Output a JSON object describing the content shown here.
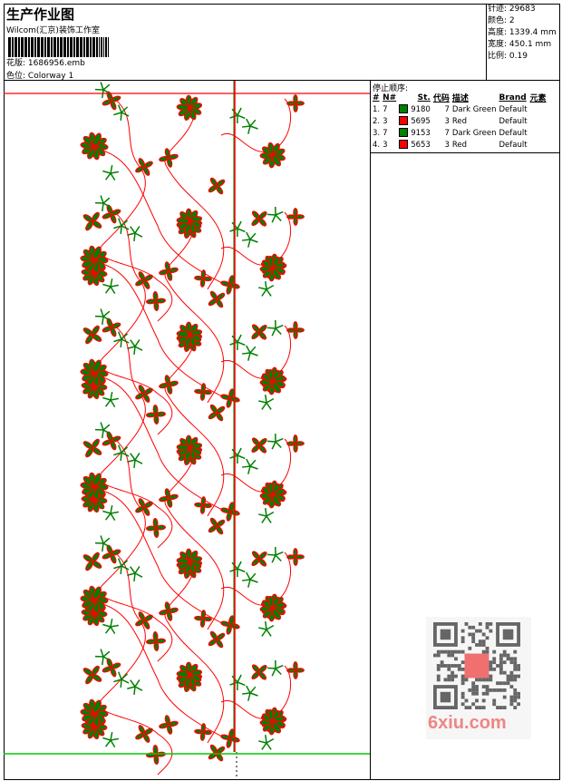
{
  "header": {
    "title": "生产作业图",
    "company": "Wilcom(汇京)装饰工作室",
    "design_label": "花版:",
    "design_file": "1686956.emb",
    "colorway_label": "色位:",
    "colorway": "Colorway 1"
  },
  "info": [
    {
      "label": "针迹:",
      "value": "29683"
    },
    {
      "label": "颜色:",
      "value": "2"
    },
    {
      "label": "高度:",
      "value": "1339.4 mm"
    },
    {
      "label": "宽度:",
      "value": "450.1 mm"
    },
    {
      "label": "比例:",
      "value": "0.19"
    }
  ],
  "stop_sequence": {
    "title": "停止顺序:",
    "columns": [
      "#",
      "N#",
      "St.",
      "代码",
      "描述",
      "Brand",
      "元素"
    ],
    "rows": [
      {
        "idx": "1.",
        "needle": "7",
        "color": "#008000",
        "stitches": "9180",
        "code": "7",
        "desc": "Dark Green",
        "brand": "Default"
      },
      {
        "idx": "2.",
        "needle": "3",
        "color": "#ff0000",
        "stitches": "5695",
        "code": "3",
        "desc": "Red",
        "brand": "Default"
      },
      {
        "idx": "3.",
        "needle": "7",
        "color": "#008000",
        "stitches": "9153",
        "code": "7",
        "desc": "Dark Green",
        "brand": "Default"
      },
      {
        "idx": "4.",
        "needle": "3",
        "color": "#ff0000",
        "stitches": "5653",
        "code": "3",
        "desc": "Red",
        "brand": "Default"
      }
    ]
  },
  "colors": {
    "green": "#008000",
    "red": "#ff0000",
    "guide_green": "#00cc00"
  },
  "watermark": {
    "text": "6xiu.com",
    "seal": "以图搜图"
  }
}
